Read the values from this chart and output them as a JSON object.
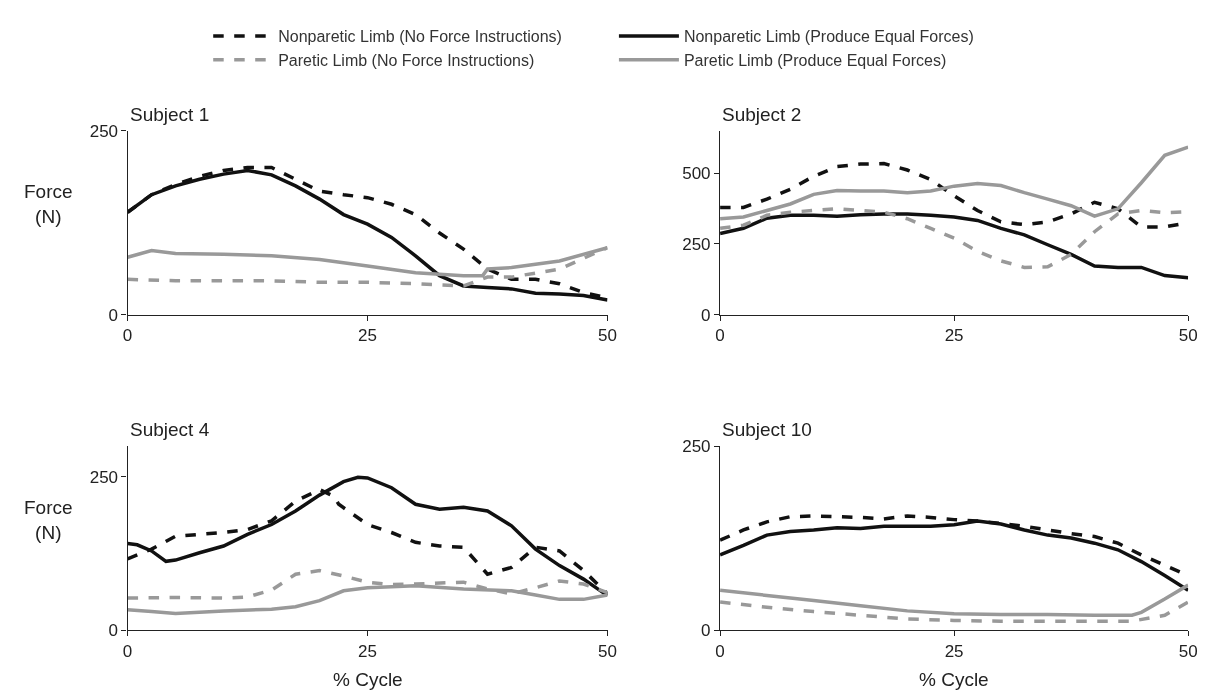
{
  "chart_data": [
    {
      "type": "line",
      "title": "Subject 1",
      "ylabel": "Force (N)",
      "xlim": [
        0,
        50
      ],
      "xticks": [
        0,
        25,
        50
      ],
      "ylim": [
        0,
        250
      ],
      "yticks": [
        0,
        250
      ],
      "legend": "top",
      "series": [
        {
          "name": "Nonparetic Limb (No Force Instructions)",
          "color": "#111111",
          "line_style": "dashed",
          "x": [
            0,
            2.5,
            5,
            7.5,
            10,
            12.5,
            15,
            17.5,
            20,
            22.5,
            25,
            27.5,
            30,
            32.5,
            35,
            37.5,
            40,
            42.5,
            45,
            47.5,
            50
          ],
          "values": [
            139,
            163,
            177,
            188,
            196,
            200,
            200,
            184,
            168,
            163,
            159,
            150,
            136,
            111,
            89,
            62,
            48,
            48,
            42,
            30,
            23
          ]
        },
        {
          "name": "Nonparetic Limb (Produce Equal Forces)",
          "color": "#111111",
          "line_style": "solid",
          "x": [
            0,
            2.5,
            5,
            7.5,
            10,
            12.5,
            15,
            17.5,
            20,
            22.5,
            25,
            27.5,
            30,
            32.5,
            35,
            37.5,
            40,
            42.5,
            45,
            47.5,
            50
          ],
          "values": [
            139,
            163,
            175,
            184,
            191,
            196,
            190,
            175,
            157,
            136,
            123,
            105,
            80,
            53,
            39,
            37,
            35,
            29,
            28,
            26,
            20
          ]
        },
        {
          "name": "Paretic Limb (No Force Instructions)",
          "color": "#999999",
          "line_style": "dashed",
          "x": [
            0,
            5,
            10,
            15,
            20,
            25,
            30,
            35,
            37.5,
            40,
            45,
            50
          ],
          "values": [
            48,
            46,
            46,
            46,
            44,
            44,
            42,
            39,
            51,
            51,
            62,
            91
          ]
        },
        {
          "name": "Paretic Limb (Produce Equal Forces)",
          "color": "#999999",
          "line_style": "solid",
          "x": [
            0,
            2.5,
            5,
            10,
            15,
            20,
            25,
            30,
            32.5,
            35,
            37,
            37.5,
            40,
            45,
            50
          ],
          "values": [
            78,
            87,
            83,
            82,
            80,
            75,
            66,
            57,
            55,
            53,
            53,
            62,
            64,
            73,
            91
          ]
        }
      ]
    },
    {
      "type": "line",
      "title": "Subject 2",
      "xlim": [
        0,
        50
      ],
      "xticks": [
        0,
        25,
        50
      ],
      "ylim": [
        0,
        650
      ],
      "yticks": [
        0,
        250,
        500
      ],
      "series": [
        {
          "color": "#111111",
          "line_style": "dashed",
          "x": [
            0,
            2.5,
            5,
            7.5,
            10,
            12.5,
            15,
            17.5,
            20,
            22.5,
            25,
            27.5,
            30,
            32.5,
            35,
            37.5,
            40,
            42.5,
            45,
            47.5,
            50
          ],
          "values": [
            379,
            379,
            408,
            443,
            489,
            523,
            532,
            534,
            511,
            477,
            420,
            368,
            328,
            318,
            328,
            356,
            397,
            374,
            310,
            310,
            325
          ]
        },
        {
          "color": "#111111",
          "line_style": "solid",
          "x": [
            0,
            2.5,
            5,
            7.5,
            10,
            12.5,
            15,
            17.5,
            20,
            22.5,
            25,
            27.5,
            30,
            32.5,
            35,
            37.5,
            40,
            42.5,
            45,
            47.5,
            50
          ],
          "values": [
            287,
            305,
            341,
            351,
            351,
            348,
            353,
            356,
            356,
            351,
            345,
            333,
            305,
            282,
            247,
            213,
            172,
            167,
            167,
            138,
            130
          ]
        },
        {
          "color": "#999999",
          "line_style": "dashed",
          "x": [
            0,
            2.5,
            5,
            7.5,
            10,
            12.5,
            15,
            17.5,
            20,
            22.5,
            25,
            27.5,
            30,
            32.5,
            35,
            37.5,
            40,
            42.5,
            45,
            47.5,
            50
          ],
          "values": [
            305,
            316,
            351,
            362,
            368,
            374,
            368,
            362,
            339,
            305,
            270,
            224,
            190,
            167,
            169,
            213,
            293,
            356,
            368,
            360,
            364
          ]
        },
        {
          "color": "#999999",
          "line_style": "solid",
          "x": [
            0,
            2.5,
            5,
            7.5,
            10,
            12.5,
            15,
            17.5,
            20,
            22.5,
            25,
            27.5,
            30,
            32.5,
            35,
            37.5,
            40,
            42.5,
            45,
            47.5,
            50
          ],
          "values": [
            339,
            345,
            368,
            391,
            425,
            439,
            437,
            437,
            431,
            437,
            454,
            463,
            456,
            431,
            408,
            385,
            348,
            374,
            466,
            563,
            592
          ]
        }
      ]
    },
    {
      "type": "line",
      "title": "Subject 4",
      "xlabel": "% Cycle",
      "ylabel": "Force (N)",
      "xlim": [
        0,
        50
      ],
      "xticks": [
        0,
        25,
        50
      ],
      "ylim": [
        0,
        300
      ],
      "yticks": [
        0,
        250
      ],
      "series": [
        {
          "color": "#111111",
          "line_style": "dashed",
          "x": [
            0,
            2.5,
            5,
            7.5,
            10,
            12.5,
            15,
            17.5,
            20,
            21.5,
            22,
            25,
            27.5,
            30,
            32.5,
            35,
            37.5,
            40,
            42.5,
            45,
            47.5,
            50
          ],
          "values": [
            116,
            132,
            153,
            156,
            159,
            164,
            178,
            210,
            229,
            218,
            205,
            172,
            159,
            143,
            137,
            135,
            91,
            102,
            135,
            129,
            97,
            59
          ]
        },
        {
          "color": "#111111",
          "line_style": "solid",
          "x": [
            0,
            1,
            2.5,
            4,
            5,
            7.5,
            10,
            12.5,
            15,
            17.5,
            20,
            22.5,
            24,
            25,
            27.5,
            30,
            32.5,
            35,
            37.5,
            40,
            42.5,
            45,
            47.5,
            50
          ],
          "values": [
            141,
            139,
            129,
            112,
            114,
            126,
            137,
            156,
            172,
            194,
            220,
            242,
            249,
            248,
            232,
            205,
            197,
            200,
            194,
            170,
            132,
            105,
            83,
            56
          ]
        },
        {
          "color": "#999999",
          "line_style": "dashed",
          "x": [
            0,
            5,
            10,
            12.5,
            15,
            17.5,
            20,
            22.5,
            25,
            27.5,
            30,
            35,
            37.5,
            40,
            42.5,
            45,
            47.5,
            50
          ],
          "values": [
            52,
            53,
            52,
            54,
            65,
            91,
            97,
            88,
            78,
            74,
            75,
            78,
            67,
            59,
            69,
            80,
            75,
            61
          ]
        },
        {
          "color": "#999999",
          "line_style": "solid",
          "x": [
            0,
            2.5,
            5,
            10,
            15,
            17.5,
            20,
            22.5,
            25,
            30,
            35,
            40,
            42.5,
            45,
            47.5,
            50
          ],
          "values": [
            33,
            30,
            27,
            31,
            34,
            38,
            48,
            64,
            69,
            72,
            67,
            64,
            57,
            50,
            50,
            57
          ]
        }
      ]
    },
    {
      "type": "line",
      "title": "Subject 10",
      "xlabel": "% Cycle",
      "xlim": [
        0,
        50
      ],
      "xticks": [
        0,
        25,
        50
      ],
      "ylim": [
        0,
        250
      ],
      "yticks": [
        0,
        250
      ],
      "series": [
        {
          "color": "#111111",
          "line_style": "dashed",
          "x": [
            0,
            2.5,
            5,
            7.5,
            10,
            12.5,
            15,
            17.5,
            20,
            22.5,
            25,
            27.5,
            30,
            32.5,
            35,
            37.5,
            40,
            42.5,
            45,
            47.5,
            50
          ],
          "values": [
            122,
            136,
            147,
            154,
            155,
            154,
            153,
            151,
            155,
            153,
            150,
            148,
            145,
            141,
            136,
            131,
            127,
            118,
            102,
            88,
            74
          ]
        },
        {
          "color": "#111111",
          "line_style": "solid",
          "x": [
            0,
            2.5,
            5,
            7.5,
            10,
            12.5,
            15,
            17.5,
            20,
            22.5,
            25,
            27.5,
            30,
            32.5,
            35,
            37.5,
            40,
            42.5,
            45,
            47.5,
            50
          ],
          "values": [
            102,
            115,
            129,
            134,
            136,
            139,
            138,
            141,
            141,
            141,
            143,
            148,
            144,
            136,
            129,
            125,
            118,
            109,
            93,
            74,
            54
          ]
        },
        {
          "color": "#999999",
          "line_style": "dashed",
          "x": [
            0,
            5,
            10,
            15,
            20,
            25,
            30,
            35,
            40,
            44,
            47.5,
            50
          ],
          "values": [
            38,
            31,
            25,
            20,
            15,
            13,
            12,
            12,
            12,
            12,
            20,
            38
          ]
        },
        {
          "color": "#999999",
          "line_style": "solid",
          "x": [
            0,
            5,
            10,
            15,
            20,
            25,
            30,
            35,
            40,
            44,
            45,
            47.5,
            50
          ],
          "values": [
            54,
            47,
            40,
            33,
            26,
            22,
            21,
            21,
            20,
            20,
            24,
            42,
            61
          ]
        }
      ]
    }
  ]
}
